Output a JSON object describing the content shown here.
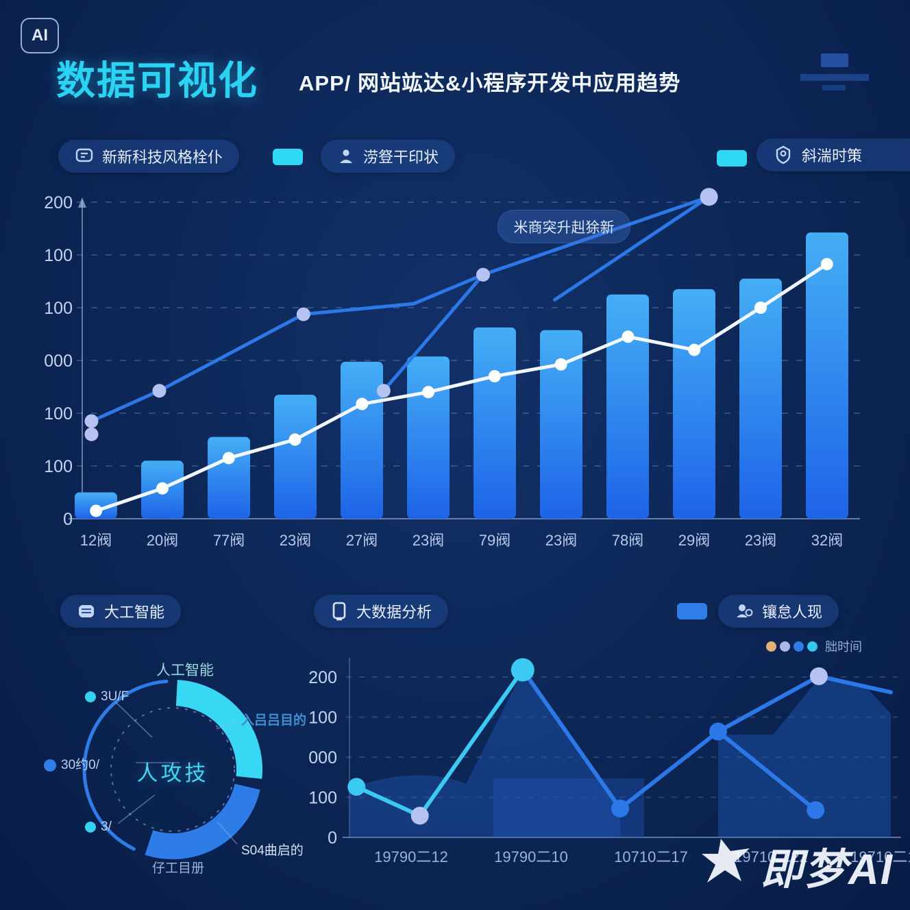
{
  "header": {
    "badge_label": "AI",
    "title": "数据可视化",
    "subtitle": "APP/ 网站竑达&小程序开发中应用趋势"
  },
  "top_legend": {
    "item1": "新新科技风格栓仆",
    "item2": "涝豋干印状",
    "item3": "斜湍时策"
  },
  "bottom_legend": {
    "item1": "大工智能",
    "item2": "大数据分析",
    "item3": "镶怠人现"
  },
  "watermark": {
    "text": "即梦AI"
  },
  "colors": {
    "accent_cyan": "#2fd8f2",
    "accent_blue": "#2e7ae8",
    "background": "#0d2757",
    "bar_top": "#45aef5",
    "bar_bottom": "#1d63e8",
    "white_line": "#f3f7ff",
    "lavender_dot": "#b6c3f2"
  },
  "chart_data": [
    {
      "type": "bar",
      "annotation": "米商突升赳狳新",
      "categories": [
        "12阀",
        "20阀",
        "77阀",
        "23阀",
        "27阀",
        "23阀",
        "79阀",
        "23阀",
        "78阀",
        "29阀",
        "23阀",
        "32阀"
      ],
      "values": [
        20,
        44,
        62,
        94,
        119,
        123,
        145,
        143,
        170,
        174,
        182,
        217
      ],
      "y_ticks": [
        "200",
        "100",
        "100",
        "000",
        "100",
        "100",
        "0"
      ],
      "ylim": [
        0,
        240
      ],
      "grid": "dashed-horizontal",
      "line_series": [
        {
          "name": "white-trend",
          "color": "#f3f7ff",
          "dot_color": "#ffffff",
          "points": [
            {
              "x": 0.018,
              "v": 6,
              "dot": 1
            },
            {
              "x": 0.104,
              "v": 23,
              "dot": 1
            },
            {
              "x": 0.19,
              "v": 46,
              "dot": 1
            },
            {
              "x": 0.276,
              "v": 60,
              "dot": 1
            },
            {
              "x": 0.363,
              "v": 87,
              "dot": 1
            },
            {
              "x": 0.449,
              "v": 96,
              "dot": 1
            },
            {
              "x": 0.535,
              "v": 108,
              "dot": 1
            },
            {
              "x": 0.621,
              "v": 117,
              "dot": 1
            },
            {
              "x": 0.708,
              "v": 138,
              "dot": 1
            },
            {
              "x": 0.794,
              "v": 128,
              "dot": 1
            },
            {
              "x": 0.88,
              "v": 160,
              "dot": 1
            },
            {
              "x": 0.966,
              "v": 193,
              "dot": 1
            }
          ]
        },
        {
          "name": "blue-trend-a",
          "color": "#2d78e8",
          "dot_color": "#b6c3f2",
          "points": [
            {
              "x": 0.012,
              "v": 74,
              "dot": 1
            },
            {
              "x": 0.1,
              "v": 97,
              "dot": 1
            },
            {
              "x": 0.287,
              "v": 155,
              "dot": 1
            },
            {
              "x": 0.43,
              "v": 163
            },
            {
              "x": 0.52,
              "v": 185,
              "dot": 1
            },
            {
              "x": 0.813,
              "v": 244,
              "dot": 2
            }
          ]
        },
        {
          "name": "blue-trend-b",
          "color": "#2d78e8",
          "dot_color": "#b6c3f2",
          "points": [
            {
              "x": 0.391,
              "v": 97,
              "dot": 1
            },
            {
              "x": 0.52,
              "v": 185
            }
          ]
        },
        {
          "name": "blue-trend-c",
          "color": "#2d78e8",
          "dot_color": "#b6c3f2",
          "points": [
            {
              "x": 0.613,
              "v": 166
            },
            {
              "x": 0.813,
              "v": 244
            }
          ]
        }
      ],
      "extra_dots": [
        {
          "x": 0.012,
          "v": 64
        }
      ]
    },
    {
      "type": "pie",
      "center_label": "人攻技",
      "segments": [
        {
          "name": "segment-cyan",
          "color": "#38d8f4",
          "start": -87,
          "end": 6,
          "thick": true
        },
        {
          "name": "segment-blue",
          "color": "#2e7ce8",
          "start": 13,
          "end": 108,
          "thick": true
        },
        {
          "name": "segment-rest",
          "color": "#2e7ce8",
          "start": 116,
          "end": 266,
          "thick": false
        }
      ],
      "callouts": {
        "top": "人工智能",
        "right_top": "入吕吕目的",
        "right_bottom": "S04曲启的",
        "bottom": "仔工目册",
        "left_top": "3U/F",
        "left_mid": "30约0/",
        "left_bottom": "3/"
      }
    },
    {
      "type": "line",
      "x_labels": [
        "19790二12",
        "19790二10",
        "10710二17",
        "19710二22",
        "19710二18"
      ],
      "y_ticks": [
        "200",
        "100",
        "000",
        "100",
        "0"
      ],
      "ylim": [
        0,
        200
      ],
      "mini_legend_label": "朏时间",
      "mini_legend_dots": [
        "#e0b27a",
        "#aab8e8",
        "#2f7ee8",
        "#35c8f0"
      ],
      "series": [
        {
          "name": "cyan-series",
          "color": "#3cc9f2",
          "points": [
            {
              "x": 0.013,
              "v": 63,
              "dot": "cyan"
            },
            {
              "x": 0.13,
              "v": 27,
              "dot": "lavender"
            },
            {
              "x": 0.32,
              "v": 209,
              "dot": "cyan-big"
            }
          ]
        },
        {
          "name": "blue-series",
          "color": "#2d78e8",
          "points": [
            {
              "x": 0.32,
              "v": 209
            },
            {
              "x": 0.5,
              "v": 36,
              "dot": "blue"
            },
            {
              "x": 0.681,
              "v": 132,
              "dot": "blue"
            },
            {
              "x": 0.867,
              "v": 201,
              "dot": "lavender"
            },
            {
              "x": 1.0,
              "v": 181
            }
          ]
        },
        {
          "name": "blue-branch",
          "color": "#2d78e8",
          "points": [
            {
              "x": 0.681,
              "v": 132
            },
            {
              "x": 0.861,
              "v": 34,
              "dot": "blue"
            }
          ]
        }
      ]
    }
  ]
}
